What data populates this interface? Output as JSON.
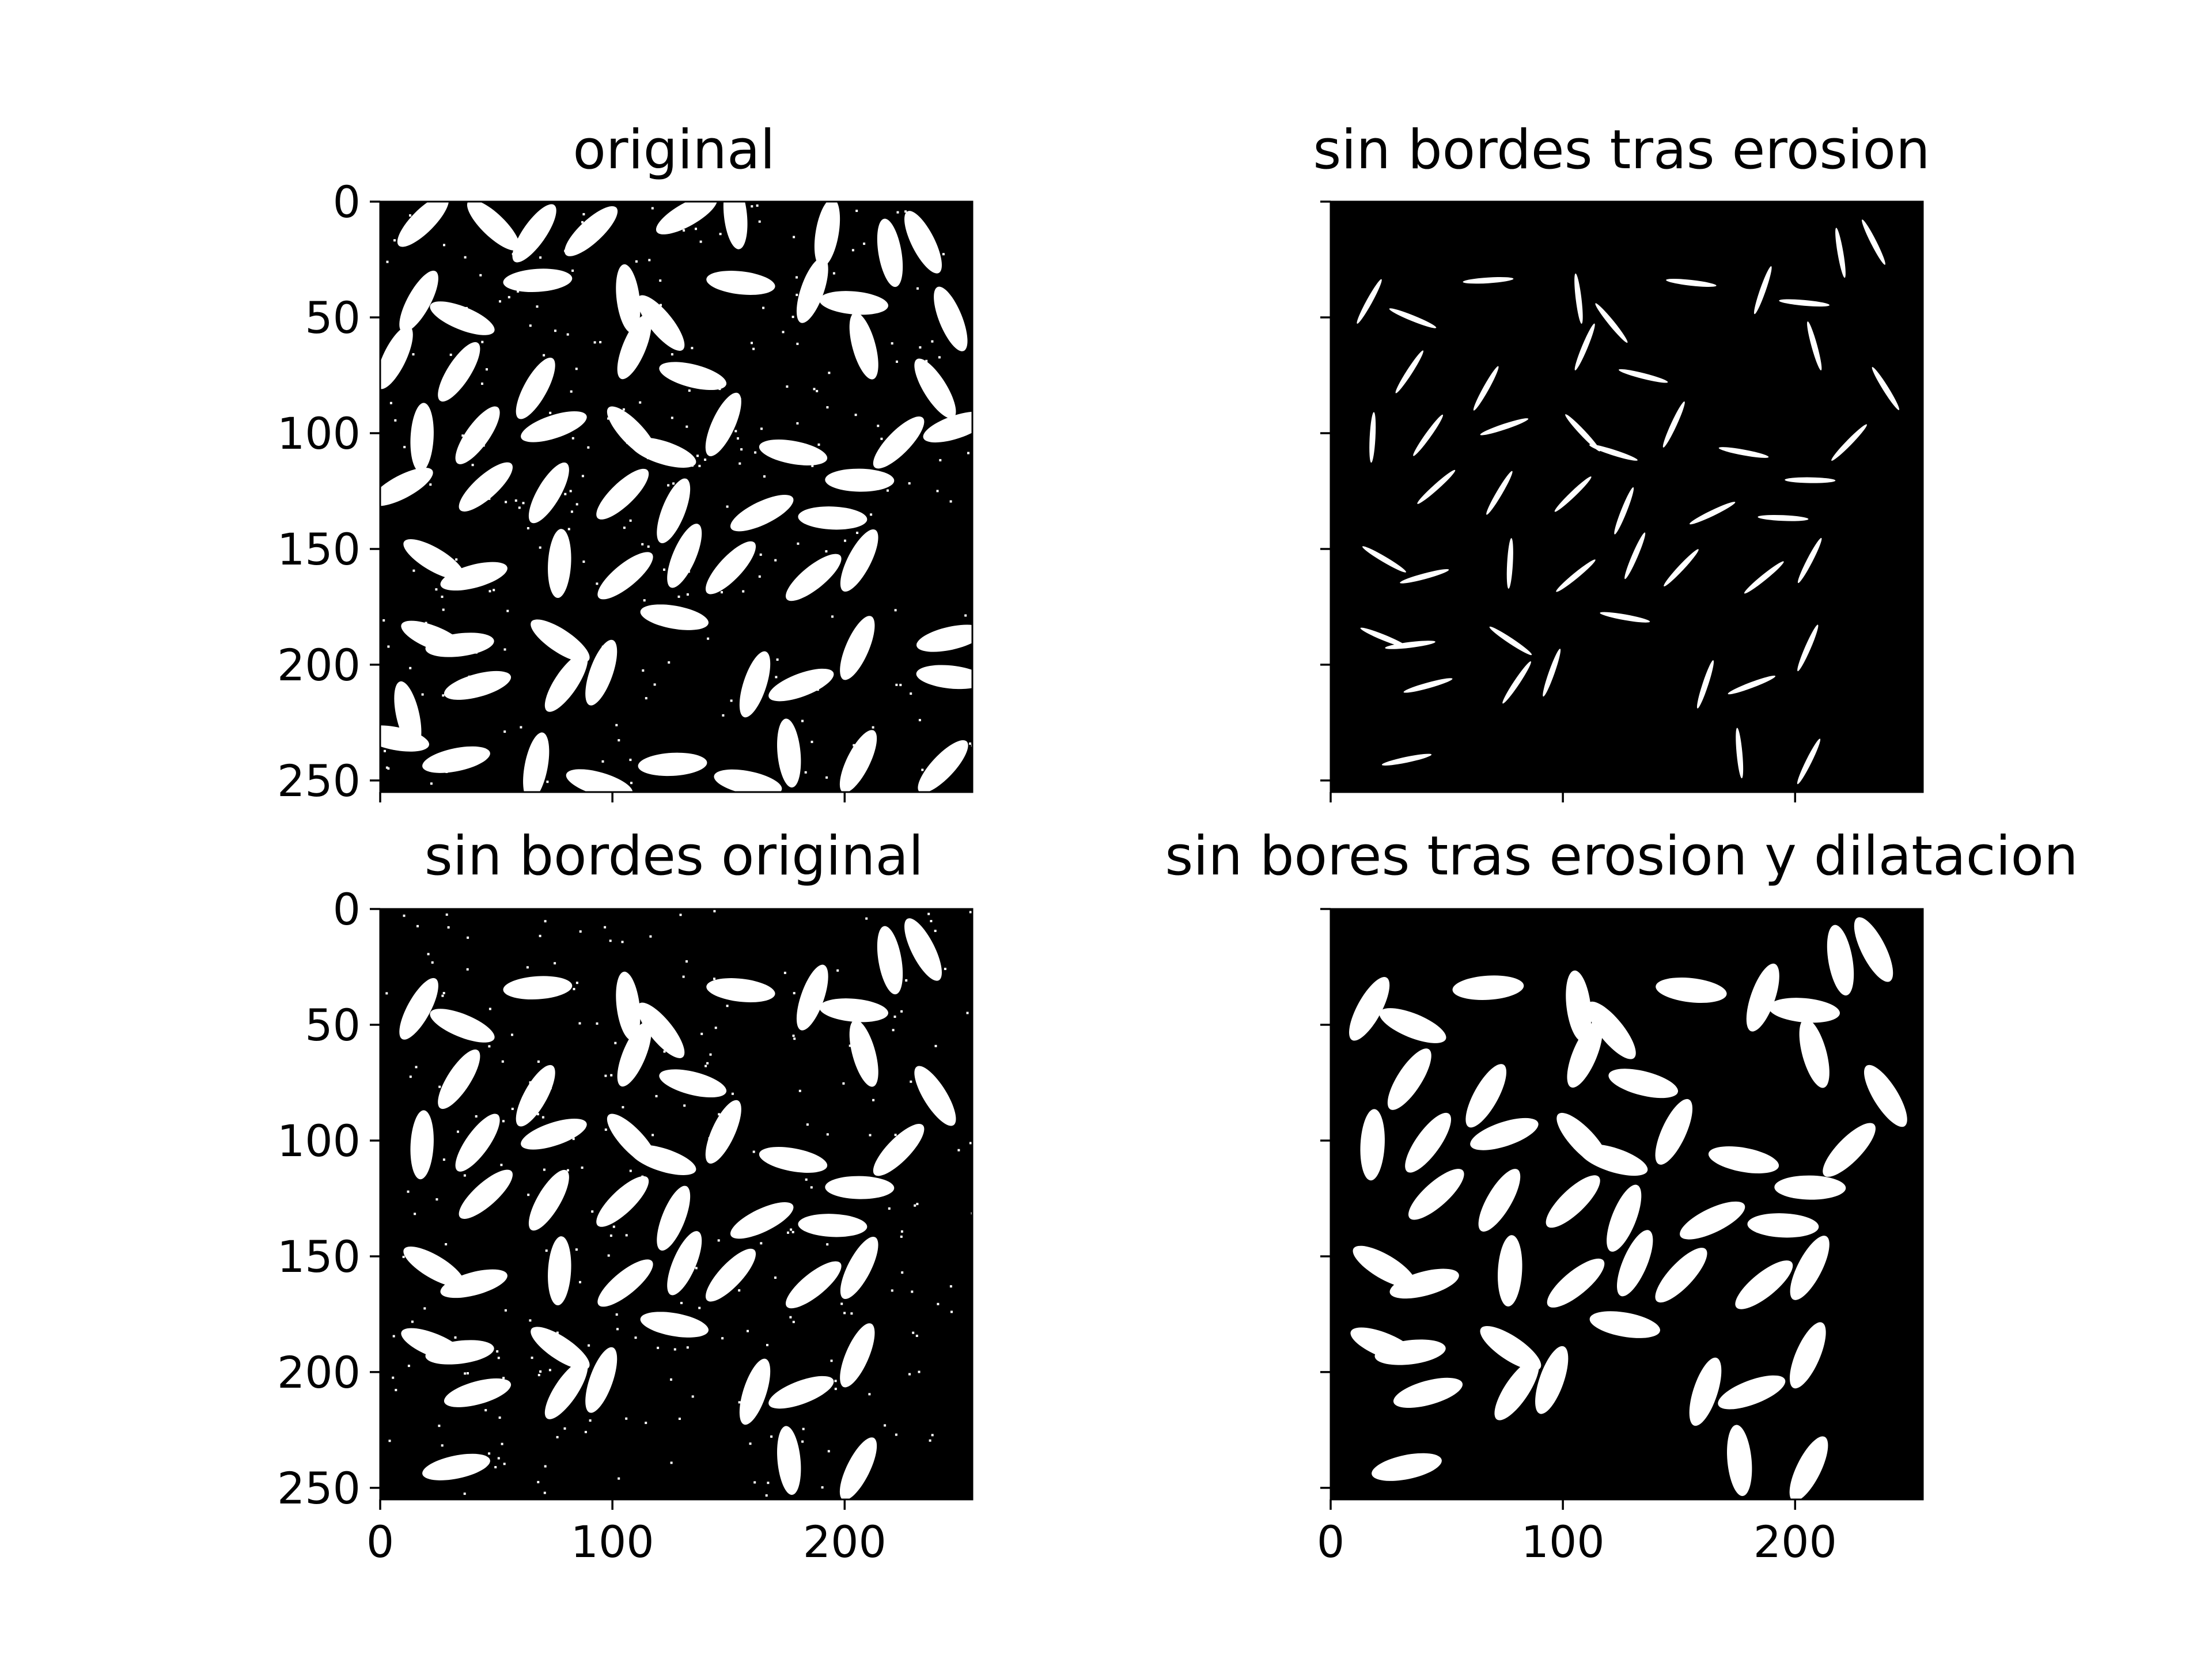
{
  "figure": {
    "background": "#ffffff"
  },
  "chart_data": [
    {
      "type": "heatmap",
      "title": "original",
      "image": "binary threshold of rice-grain image (white grains on black background), including grains touching the border and small noise specks",
      "colormap": [
        "#000000",
        "#ffffff"
      ],
      "xlim": [
        0,
        255
      ],
      "ylim": [
        255,
        0
      ],
      "xticks": [
        0,
        100,
        200
      ],
      "yticks": [
        0,
        50,
        100,
        150,
        200,
        250
      ],
      "show_xticklabels": false,
      "show_yticklabels": true
    },
    {
      "type": "heatmap",
      "title": "sin bordes tras erosion",
      "image": "eroded grains with border-touching objects removed; thin white slivers on black",
      "colormap": [
        "#000000",
        "#ffffff"
      ],
      "xlim": [
        0,
        255
      ],
      "ylim": [
        255,
        0
      ],
      "xticks": [
        0,
        100,
        200
      ],
      "yticks": [
        0,
        50,
        100,
        150,
        200,
        250
      ],
      "show_xticklabels": false,
      "show_yticklabels": false
    },
    {
      "type": "heatmap",
      "title": "sin bordes original",
      "image": "original binary image with border-touching grains removed; noise specks remain",
      "colormap": [
        "#000000",
        "#ffffff"
      ],
      "xlim": [
        0,
        255
      ],
      "ylim": [
        255,
        0
      ],
      "xticks": [
        0,
        100,
        200
      ],
      "yticks": [
        0,
        50,
        100,
        150,
        200,
        250
      ],
      "show_xticklabels": true,
      "show_yticklabels": true
    },
    {
      "type": "heatmap",
      "title": "sin bores tras erosion y dilatacion",
      "image": "grains without border objects after erosion and dilation; clean white grains on black",
      "colormap": [
        "#000000",
        "#ffffff"
      ],
      "xlim": [
        0,
        255
      ],
      "ylim": [
        255,
        0
      ],
      "xticks": [
        0,
        100,
        200
      ],
      "yticks": [
        0,
        50,
        100,
        150,
        200,
        250
      ],
      "show_xticklabels": true,
      "show_yticklabels": false
    }
  ]
}
